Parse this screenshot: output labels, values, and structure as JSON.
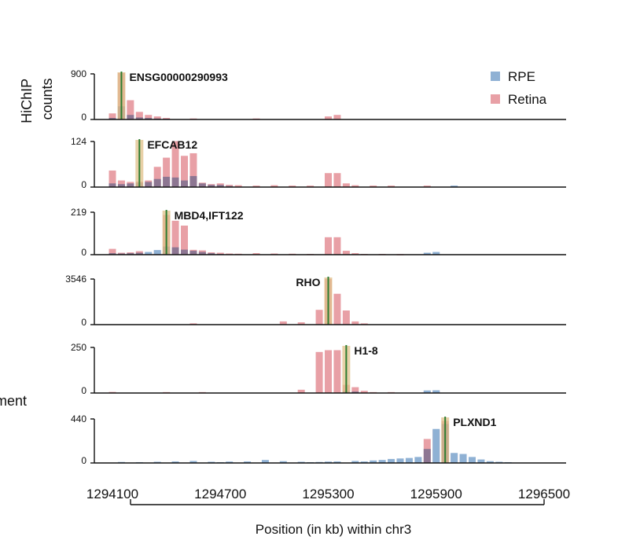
{
  "chart_data": {
    "type": "bar",
    "ylabel_lines": [
      "HiChIP",
      "counts"
    ],
    "clipped_label": "ment",
    "xlabel": "Position (in kb) within chr3",
    "xlim": [
      1294100,
      1296500
    ],
    "xticks": [
      "1294100",
      "1294700",
      "1295300",
      "1295900",
      "1296500"
    ],
    "legend": {
      "placement": "top-right",
      "entries": [
        {
          "name": "RPE",
          "color": "#8fb1d4"
        },
        {
          "name": "Retina",
          "color": "#e8a0a6"
        }
      ]
    },
    "overlap_color": "#7d6f8e",
    "anchor_color": "#e0c089",
    "marker_color": "#2e7d32",
    "panels": [
      {
        "gene": "ENSG00000290993",
        "ymax": 900,
        "yticks": [
          "900",
          "0"
        ],
        "anchor_x": 1294150,
        "retina": [
          [
            1294100,
            120
          ],
          [
            1294150,
            920
          ],
          [
            1294200,
            380
          ],
          [
            1294250,
            150
          ],
          [
            1294300,
            90
          ],
          [
            1294350,
            60
          ],
          [
            1294400,
            30
          ],
          [
            1294550,
            20
          ],
          [
            1294900,
            20
          ],
          [
            1295300,
            60
          ],
          [
            1295350,
            90
          ]
        ],
        "rpe": [
          [
            1294100,
            30
          ],
          [
            1294150,
            260
          ],
          [
            1294200,
            90
          ],
          [
            1294250,
            40
          ],
          [
            1294300,
            30
          ],
          [
            1294350,
            20
          ],
          [
            1294400,
            15
          ]
        ]
      },
      {
        "gene": "EFCAB12",
        "ymax": 124,
        "yticks": [
          "124",
          "0"
        ],
        "anchor_x": 1294250,
        "retina": [
          [
            1294100,
            45
          ],
          [
            1294150,
            18
          ],
          [
            1294200,
            14
          ],
          [
            1294250,
            15
          ],
          [
            1294300,
            18
          ],
          [
            1294350,
            55
          ],
          [
            1294400,
            80
          ],
          [
            1294450,
            125
          ],
          [
            1294500,
            85
          ],
          [
            1294550,
            92
          ],
          [
            1294600,
            12
          ],
          [
            1294650,
            8
          ],
          [
            1294700,
            10
          ],
          [
            1294750,
            6
          ],
          [
            1294800,
            5
          ],
          [
            1294900,
            4
          ],
          [
            1295000,
            5
          ],
          [
            1295100,
            4
          ],
          [
            1295200,
            4
          ],
          [
            1295300,
            38
          ],
          [
            1295350,
            38
          ],
          [
            1295400,
            10
          ],
          [
            1295450,
            5
          ],
          [
            1295550,
            4
          ],
          [
            1295650,
            4
          ],
          [
            1295850,
            4
          ],
          [
            1296000,
            3
          ]
        ],
        "rpe": [
          [
            1294100,
            10
          ],
          [
            1294150,
            8
          ],
          [
            1294200,
            10
          ],
          [
            1294250,
            12
          ],
          [
            1294300,
            14
          ],
          [
            1294350,
            22
          ],
          [
            1294400,
            28
          ],
          [
            1294450,
            26
          ],
          [
            1294500,
            18
          ],
          [
            1294550,
            30
          ],
          [
            1294600,
            10
          ],
          [
            1294650,
            6
          ],
          [
            1294700,
            6
          ],
          [
            1294750,
            3
          ],
          [
            1296000,
            4
          ]
        ]
      },
      {
        "gene": "MBD4,IFT122",
        "ymax": 219,
        "yticks": [
          "219",
          "0"
        ],
        "anchor_x": 1294400,
        "retina": [
          [
            1294100,
            30
          ],
          [
            1294150,
            10
          ],
          [
            1294200,
            12
          ],
          [
            1294250,
            18
          ],
          [
            1294300,
            10
          ],
          [
            1294350,
            20
          ],
          [
            1294400,
            205
          ],
          [
            1294450,
            175
          ],
          [
            1294500,
            150
          ],
          [
            1294550,
            25
          ],
          [
            1294600,
            22
          ],
          [
            1294650,
            12
          ],
          [
            1294700,
            10
          ],
          [
            1294750,
            6
          ],
          [
            1294800,
            5
          ],
          [
            1294900,
            8
          ],
          [
            1295000,
            6
          ],
          [
            1295100,
            5
          ],
          [
            1295200,
            4
          ],
          [
            1295300,
            90
          ],
          [
            1295350,
            90
          ],
          [
            1295400,
            20
          ],
          [
            1295450,
            8
          ],
          [
            1295500,
            4
          ],
          [
            1295600,
            4
          ],
          [
            1295700,
            3
          ]
        ],
        "rpe": [
          [
            1294100,
            8
          ],
          [
            1294150,
            6
          ],
          [
            1294200,
            8
          ],
          [
            1294250,
            10
          ],
          [
            1294300,
            14
          ],
          [
            1294350,
            24
          ],
          [
            1294400,
            42
          ],
          [
            1294450,
            38
          ],
          [
            1294500,
            26
          ],
          [
            1294550,
            20
          ],
          [
            1294600,
            14
          ],
          [
            1294650,
            8
          ],
          [
            1294700,
            4
          ],
          [
            1295850,
            10
          ],
          [
            1295900,
            14
          ]
        ]
      },
      {
        "gene": "RHO",
        "ymax": 3546,
        "yticks": [
          "3546",
          "0"
        ],
        "anchor_x": 1295300,
        "retina": [
          [
            1294550,
            100
          ],
          [
            1295050,
            250
          ],
          [
            1295150,
            180
          ],
          [
            1295250,
            1150
          ],
          [
            1295300,
            3550
          ],
          [
            1295350,
            2400
          ],
          [
            1295400,
            1100
          ],
          [
            1295450,
            250
          ],
          [
            1295500,
            100
          ]
        ],
        "rpe": []
      },
      {
        "gene": "H1-8",
        "ymax": 250,
        "yticks": [
          "250",
          "0"
        ],
        "anchor_x": 1295400,
        "retina": [
          [
            1294100,
            6
          ],
          [
            1294400,
            5
          ],
          [
            1294600,
            5
          ],
          [
            1295150,
            18
          ],
          [
            1295250,
            225
          ],
          [
            1295300,
            235
          ],
          [
            1295350,
            235
          ],
          [
            1295400,
            45
          ],
          [
            1295450,
            32
          ],
          [
            1295500,
            12
          ],
          [
            1295550,
            5
          ],
          [
            1295650,
            5
          ],
          [
            1295850,
            10
          ],
          [
            1295900,
            12
          ]
        ],
        "rpe": [
          [
            1295400,
            10
          ],
          [
            1295450,
            8
          ],
          [
            1295850,
            14
          ],
          [
            1295900,
            15
          ]
        ]
      },
      {
        "gene": "PLXND1",
        "ymax": 440,
        "yticks": [
          "440",
          "0"
        ],
        "anchor_x": 1295950,
        "retina": [
          [
            1295850,
            240
          ],
          [
            1295900,
            330
          ],
          [
            1295950,
            420
          ],
          [
            1296000,
            90
          ],
          [
            1296050,
            40
          ],
          [
            1296100,
            10
          ]
        ],
        "rpe": [
          [
            1294150,
            10
          ],
          [
            1294250,
            8
          ],
          [
            1294350,
            12
          ],
          [
            1294450,
            15
          ],
          [
            1294550,
            20
          ],
          [
            1294650,
            12
          ],
          [
            1294700,
            8
          ],
          [
            1294750,
            14
          ],
          [
            1294850,
            15
          ],
          [
            1294950,
            30
          ],
          [
            1295050,
            18
          ],
          [
            1295150,
            12
          ],
          [
            1295200,
            8
          ],
          [
            1295250,
            10
          ],
          [
            1295300,
            14
          ],
          [
            1295350,
            15
          ],
          [
            1295450,
            20
          ],
          [
            1295500,
            15
          ],
          [
            1295550,
            25
          ],
          [
            1295600,
            30
          ],
          [
            1295650,
            40
          ],
          [
            1295700,
            45
          ],
          [
            1295750,
            50
          ],
          [
            1295800,
            60
          ],
          [
            1295850,
            140
          ],
          [
            1295900,
            340
          ],
          [
            1295950,
            390
          ],
          [
            1296000,
            100
          ],
          [
            1296050,
            90
          ],
          [
            1296100,
            60
          ],
          [
            1296150,
            35
          ],
          [
            1296200,
            18
          ],
          [
            1296250,
            12
          ],
          [
            1296300,
            8
          ]
        ]
      }
    ]
  }
}
